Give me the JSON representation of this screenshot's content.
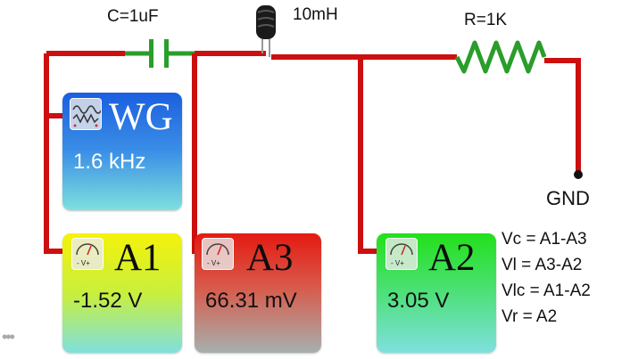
{
  "circuit": {
    "capacitor_label": "C=1uF",
    "inductor_label": "10mH",
    "resistor_label": "R=1K",
    "ground_label": "GND"
  },
  "wave_generator": {
    "title": "WG",
    "frequency": "1.6 kHz",
    "icon": "waveform-icon"
  },
  "meters": [
    {
      "id": "A1",
      "title": "A1",
      "reading": "-1.52 V",
      "icon": "voltmeter-icon",
      "badge_text": "- V+"
    },
    {
      "id": "A3",
      "title": "A3",
      "reading": "66.31 mV",
      "icon": "voltmeter-icon",
      "badge_text": "- V+"
    },
    {
      "id": "A2",
      "title": "A2",
      "reading": "3.05 V",
      "icon": "voltmeter-icon",
      "badge_text": "- V+"
    }
  ],
  "equations": [
    "Vc = A1-A3",
    "Vl = A3-A2",
    "Vlc = A1-A2",
    "Vr = A2"
  ],
  "colors": {
    "wire": "#cc0f0f",
    "capacitor": "#2a9d2a",
    "wg_gradient": [
      "#1a5fe0",
      "#7fe0de"
    ],
    "a1_gradient": [
      "#f4f20a",
      "#7fe0de"
    ],
    "a3_gradient": [
      "#e41a12",
      "#7fe0de"
    ],
    "a2_gradient": [
      "#22e01a",
      "#7fe0de"
    ]
  },
  "menu": {
    "more_label": "•••"
  }
}
